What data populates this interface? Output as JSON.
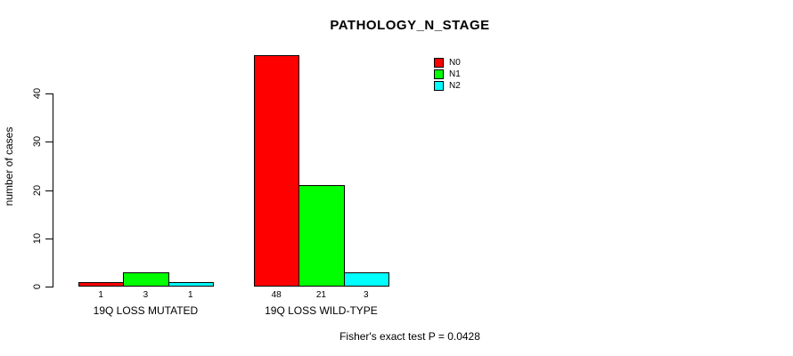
{
  "chart_data": {
    "type": "bar",
    "title": "PATHOLOGY_N_STAGE",
    "ylabel": "number of cases",
    "xlabel": "",
    "ylim": [
      0,
      40
    ],
    "yticks": [
      0,
      10,
      20,
      30,
      40
    ],
    "grid": false,
    "legend_position": "top-right",
    "categories": [
      "19Q LOSS MUTATED",
      "19Q LOSS WILD-TYPE"
    ],
    "series": [
      {
        "name": "N0",
        "color": "#ff0000",
        "values": [
          1,
          48
        ]
      },
      {
        "name": "N1",
        "color": "#00ff00",
        "values": [
          3,
          21
        ]
      },
      {
        "name": "N2",
        "color": "#00ffff",
        "values": [
          1,
          3
        ]
      }
    ],
    "bar_value_labels": [
      [
        "1",
        "3",
        "1"
      ],
      [
        "48",
        "21",
        "3"
      ]
    ],
    "annotation": "Fisher's exact test P = 0.0428"
  },
  "colors": {
    "background": "#ffffff",
    "axis": "#000000",
    "text": "#000000"
  }
}
